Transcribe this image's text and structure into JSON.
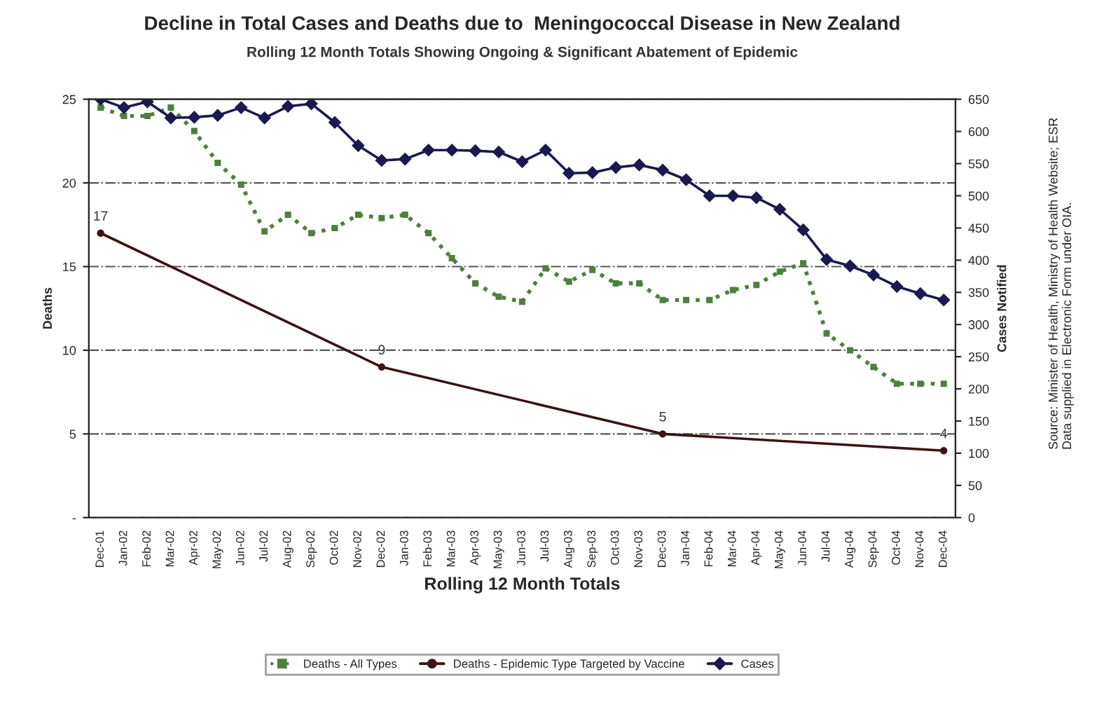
{
  "chart_data": {
    "type": "line",
    "title": "Decline in Total Cases and Deaths due to  Meningococcal Disease in New Zealand",
    "subtitle": "Rolling 12 Month Totals Showing Ongoing & Significant Abatement of Epidemic",
    "xlabel": "Rolling 12 Month Totals",
    "ylabel": "Deaths",
    "y2label": "Cases Notified",
    "categories": [
      "Dec-01",
      "Jan-02",
      "Feb-02",
      "Mar-02",
      "Apr-02",
      "May-02",
      "Jun-02",
      "Jul-02",
      "Aug-02",
      "Sep-02",
      "Oct-02",
      "Nov-02",
      "Dec-02",
      "Jan-03",
      "Feb-03",
      "Mar-03",
      "Apr-03",
      "May-03",
      "Jun-03",
      "Jul-03",
      "Aug-03",
      "Sep-03",
      "Oct-03",
      "Nov-03",
      "Dec-03",
      "Jan-04",
      "Feb-04",
      "Mar-04",
      "Apr-04",
      "May-04",
      "Jun-04",
      "Jul-04",
      "Aug-04",
      "Sep-04",
      "Oct-04",
      "Nov-04",
      "Dec-04"
    ],
    "series": [
      {
        "name": "Deaths - All Types",
        "color": "#4f7f3f",
        "line_style": "dotted",
        "marker": "square",
        "values": [
          24.5,
          24.0,
          24.0,
          24.5,
          23.1,
          21.2,
          19.9,
          17.1,
          18.1,
          17.0,
          17.3,
          18.1,
          17.9,
          18.1,
          17.0,
          15.5,
          14.0,
          13.2,
          12.9,
          14.9,
          14.1,
          14.8,
          14.0,
          14.0,
          13.0,
          13.0,
          13.0,
          13.6,
          13.9,
          14.7,
          15.2,
          11.0,
          10.0,
          9.0,
          8.0,
          8.0,
          8.0
        ]
      },
      {
        "name": "Deaths - Epidemic Type Targeted by Vaccine",
        "color": "#3a1414",
        "line_style": "solid",
        "marker": "circle",
        "values": [
          17,
          null,
          null,
          null,
          null,
          null,
          null,
          null,
          null,
          null,
          null,
          null,
          9,
          null,
          null,
          null,
          null,
          null,
          null,
          null,
          null,
          null,
          null,
          null,
          5,
          null,
          null,
          null,
          null,
          null,
          null,
          null,
          null,
          null,
          null,
          null,
          4
        ],
        "value_labels": [
          "17",
          null,
          null,
          null,
          null,
          null,
          null,
          null,
          null,
          null,
          null,
          null,
          "9",
          null,
          null,
          null,
          null,
          null,
          null,
          null,
          null,
          null,
          null,
          null,
          "5",
          null,
          null,
          null,
          null,
          null,
          null,
          null,
          null,
          null,
          null,
          null,
          "4"
        ]
      },
      {
        "name": "Cases",
        "color": "#1a1a50",
        "line_style": "solid",
        "marker": "diamond",
        "axis": "y2",
        "values": [
          650,
          637,
          646,
          621,
          622,
          625,
          637,
          621,
          639,
          643,
          614,
          578,
          555,
          557,
          571,
          571,
          570,
          568,
          553,
          571,
          535,
          536,
          544,
          548,
          540,
          525,
          500,
          500,
          497,
          479,
          447,
          401,
          391,
          377,
          359,
          348,
          338
        ]
      }
    ],
    "ylim": [
      0,
      25
    ],
    "yticks": [
      {
        "value": 0,
        "label": "-"
      },
      5,
      10,
      15,
      20,
      25
    ],
    "y2lim": [
      0,
      650
    ],
    "y2ticks": [
      0,
      50,
      100,
      150,
      200,
      250,
      300,
      350,
      400,
      450,
      500,
      550,
      600,
      650
    ],
    "grid": "y",
    "legend": "bottom",
    "annotations": [
      "Source: Minister of Health, Ministry of Health Website; ESR Data supplied in Electronic Form under OIA."
    ]
  }
}
